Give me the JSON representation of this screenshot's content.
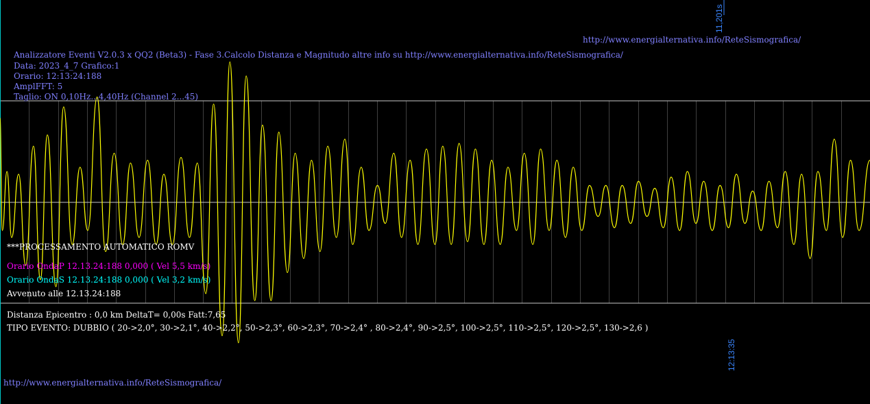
{
  "header": {
    "url_top": "http://www.energialternativa.info/ReteSismografica/",
    "line1": "Analizzatore Eventi V2.0.3 x QQ2 (Beta3) - Fase 3.Calcolo Distanza e Magnitudo altre info su http://www.energialternativa.info/ReteSismografica/",
    "line2": "Data: 2023_4_7 Grafico:1",
    "line3": "Orario: 12:13:24:188",
    "line4": "AmplFFT: 5",
    "line5": "Taglio: ON 0,10Hz...4,40Hz      (Channel 2...45)"
  },
  "time_labels": {
    "duration": "11,201s",
    "time_end": "12:13:35"
  },
  "processing": {
    "title": "***PROCESSAMENTO AUTOMATICO ROMV",
    "onda_p": "Orario OndaP 12.13.24:188  0,000 ( Vel 5,5 km/s)",
    "onda_s": "Orario OndaS 12.13.24:188  0,000 ( Vel 3,2 km/s)",
    "avvenuto": "Avvenuto alle 12.13.24:188",
    "distanza": "Distanza Epicentro : 0,0 km DeltaT= 0,00s  Fatt:7,65",
    "tipo_evento": "TIPO EVENTO: DUBBIO ( 20->2,0°, 30->2,1°, 40->2,2°, 50->2,3°, 60->2,3°, 70->2,4° , 80->2,4°, 90->2,5°, 100->2,5°, 110->2,5°, 120->2,5°, 130->2,6 )"
  },
  "footer": {
    "url_bottom": "http://www.energialternativa.info/ReteSismografica/"
  },
  "colors": {
    "background": "#000000",
    "trace": "#ffff00",
    "grid": "#c8c8c8",
    "gridline": "#404040",
    "axis_cyan": "#00c8c8"
  },
  "chart_data": {
    "type": "line",
    "title": "",
    "xlabel": "",
    "ylabel": "",
    "grid": true,
    "y_peaks": [
      [
        0.0,
        0.6
      ],
      [
        0.03,
        -0.2
      ],
      [
        0.09,
        0.22
      ],
      [
        0.15,
        -0.25
      ],
      [
        0.24,
        0.2
      ],
      [
        0.33,
        -0.45
      ],
      [
        0.43,
        0.4
      ],
      [
        0.52,
        -0.55
      ],
      [
        0.61,
        0.48
      ],
      [
        0.72,
        -0.6
      ],
      [
        0.82,
        0.68
      ],
      [
        0.93,
        -0.3
      ],
      [
        1.03,
        0.25
      ],
      [
        1.13,
        -0.2
      ],
      [
        1.25,
        0.75
      ],
      [
        1.36,
        -0.35
      ],
      [
        1.47,
        0.35
      ],
      [
        1.58,
        -0.3
      ],
      [
        1.68,
        0.28
      ],
      [
        1.79,
        -0.25
      ],
      [
        1.9,
        0.3
      ],
      [
        2.01,
        -0.3
      ],
      [
        2.11,
        0.2
      ],
      [
        2.22,
        -0.3
      ],
      [
        2.33,
        0.32
      ],
      [
        2.44,
        -0.25
      ],
      [
        2.54,
        0.28
      ],
      [
        2.65,
        -0.65
      ],
      [
        2.75,
        0.7
      ],
      [
        2.86,
        -0.95
      ],
      [
        2.96,
        1.0
      ],
      [
        3.07,
        -1.0
      ],
      [
        3.17,
        0.9
      ],
      [
        3.28,
        -0.7
      ],
      [
        3.38,
        0.55
      ],
      [
        3.49,
        -0.7
      ],
      [
        3.59,
        0.5
      ],
      [
        3.7,
        -0.5
      ],
      [
        3.8,
        0.35
      ],
      [
        3.91,
        -0.4
      ],
      [
        4.01,
        0.3
      ],
      [
        4.12,
        -0.35
      ],
      [
        4.22,
        0.4
      ],
      [
        4.33,
        -0.25
      ],
      [
        4.44,
        0.45
      ],
      [
        4.54,
        -0.3
      ],
      [
        4.65,
        0.25
      ],
      [
        4.75,
        -0.2
      ],
      [
        4.86,
        0.12
      ],
      [
        4.96,
        -0.15
      ],
      [
        5.07,
        0.35
      ],
      [
        5.17,
        -0.25
      ],
      [
        5.28,
        0.3
      ],
      [
        5.38,
        -0.3
      ],
      [
        5.49,
        0.38
      ],
      [
        5.6,
        -0.3
      ],
      [
        5.7,
        0.4
      ],
      [
        5.81,
        -0.3
      ],
      [
        5.91,
        0.42
      ],
      [
        6.02,
        -0.28
      ],
      [
        6.12,
        0.38
      ],
      [
        6.23,
        -0.3
      ],
      [
        6.33,
        0.3
      ],
      [
        6.44,
        -0.3
      ],
      [
        6.54,
        0.25
      ],
      [
        6.65,
        -0.2
      ],
      [
        6.75,
        0.35
      ],
      [
        6.86,
        -0.3
      ],
      [
        6.96,
        0.38
      ],
      [
        7.07,
        -0.2
      ],
      [
        7.17,
        0.3
      ],
      [
        7.28,
        -0.25
      ],
      [
        7.38,
        0.25
      ],
      [
        7.49,
        -0.2
      ],
      [
        7.59,
        0.12
      ],
      [
        7.7,
        -0.1
      ],
      [
        7.8,
        0.12
      ],
      [
        7.91,
        -0.18
      ],
      [
        8.01,
        0.12
      ],
      [
        8.12,
        -0.15
      ],
      [
        8.22,
        0.15
      ],
      [
        8.33,
        -0.1
      ],
      [
        8.43,
        0.1
      ],
      [
        8.54,
        -0.18
      ],
      [
        8.64,
        0.18
      ],
      [
        8.75,
        -0.2
      ],
      [
        8.85,
        0.22
      ],
      [
        8.96,
        -0.15
      ],
      [
        9.06,
        0.15
      ],
      [
        9.17,
        -0.2
      ],
      [
        9.27,
        0.12
      ],
      [
        9.38,
        -0.18
      ],
      [
        9.48,
        0.2
      ],
      [
        9.59,
        -0.15
      ],
      [
        9.69,
        0.08
      ],
      [
        9.8,
        -0.2
      ],
      [
        9.9,
        0.15
      ],
      [
        10.01,
        -0.18
      ],
      [
        10.11,
        0.22
      ],
      [
        10.22,
        -0.3
      ],
      [
        10.32,
        0.2
      ],
      [
        10.43,
        -0.4
      ],
      [
        10.53,
        0.22
      ],
      [
        10.64,
        -0.2
      ],
      [
        10.74,
        0.45
      ],
      [
        10.85,
        -0.25
      ],
      [
        10.95,
        0.3
      ],
      [
        11.06,
        -0.2
      ],
      [
        11.2,
        0.3
      ]
    ],
    "xlim": [
      0,
      11.201
    ],
    "ylim": [
      -1.05,
      1.05
    ]
  }
}
